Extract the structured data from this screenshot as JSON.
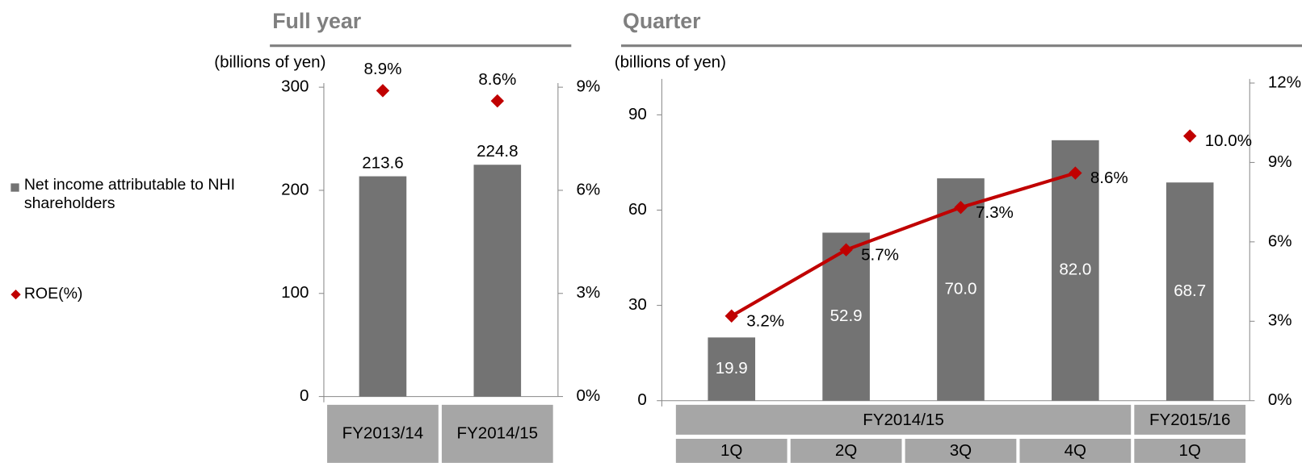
{
  "chart_data": [
    {
      "type": "bar",
      "title": "Full year",
      "y_label": "(billions of yen)",
      "categories": [
        "FY2013/14",
        "FY2014/15"
      ],
      "series": [
        {
          "name": "Net income attributable to NHI shareholders",
          "color": "#737373",
          "values": [
            213.6,
            224.8
          ]
        },
        {
          "name": "ROE(%)",
          "color": "#c00000",
          "axis": "y2",
          "type": "line",
          "values": [
            8.9,
            8.6
          ],
          "value_labels": [
            "8.9%",
            "8.6%"
          ]
        }
      ],
      "ylim": [
        0,
        300
      ],
      "yticks": [
        0,
        100,
        200,
        300
      ],
      "y2lim": [
        0,
        9
      ],
      "y2ticks": [
        {
          "value": 0,
          "label": "0%"
        },
        {
          "value": 3,
          "label": "3%"
        },
        {
          "value": 6,
          "label": "6%"
        },
        {
          "value": 9,
          "label": "9%"
        }
      ],
      "legend": "left"
    },
    {
      "type": "bar",
      "title": "Quarter",
      "y_label": "(billions of yen)",
      "categories": [
        "1Q",
        "2Q",
        "3Q",
        "4Q",
        "1Q"
      ],
      "category_groups": [
        "FY2014/15",
        "FY2014/15",
        "FY2014/15",
        "FY2014/15",
        "FY2015/16"
      ],
      "series": [
        {
          "color": "#737373",
          "values": [
            19.9,
            52.9,
            70,
            82,
            68.7
          ],
          "value_labels": [
            "19.9",
            "52.9",
            "70.0",
            "82.0",
            "68.7"
          ],
          "labels_inside": true
        },
        {
          "color": "#c00000",
          "axis": "y2",
          "type": "line",
          "values": [
            3.2,
            5.7,
            7.3,
            8.6,
            10.0
          ],
          "value_labels": [
            "3.2%",
            "5.7%",
            "7.3%",
            "8.6%",
            "10.0%"
          ]
        }
      ],
      "ylim": [
        0,
        100
      ],
      "yticks": [
        0,
        30,
        60,
        90
      ],
      "y2lim": [
        0,
        12
      ],
      "y2ticks": [
        {
          "value": 0,
          "label": "0%"
        },
        {
          "value": 3,
          "label": "3%"
        },
        {
          "value": 6,
          "label": "6%"
        },
        {
          "value": 9,
          "label": "9%"
        },
        {
          "value": 12,
          "label": "12%"
        }
      ]
    }
  ]
}
